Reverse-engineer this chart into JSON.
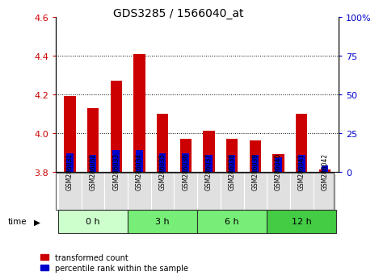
{
  "title": "GDS3285 / 1566040_at",
  "samples": [
    "GSM286031",
    "GSM286032",
    "GSM286033",
    "GSM286034",
    "GSM286035",
    "GSM286036",
    "GSM286037",
    "GSM286038",
    "GSM286039",
    "GSM286040",
    "GSM286041",
    "GSM286042"
  ],
  "transformed_count": [
    4.19,
    4.13,
    4.27,
    4.41,
    4.1,
    3.97,
    4.01,
    3.97,
    3.96,
    3.89,
    4.1,
    3.81
  ],
  "percentile_rank": [
    12,
    11,
    14,
    14,
    12,
    12,
    11,
    11,
    11,
    9,
    11,
    4
  ],
  "ylim_left": [
    3.8,
    4.6
  ],
  "ylim_right": [
    0,
    100
  ],
  "yticks_left": [
    3.8,
    4.0,
    4.2,
    4.4,
    4.6
  ],
  "yticks_right": [
    0,
    25,
    50,
    75,
    100
  ],
  "bar_bottom": 3.8,
  "bar_color_red": "#cc0000",
  "bar_color_blue": "#0000cc",
  "blue_bar_width": 0.3,
  "red_bar_width": 0.5,
  "grid_color": "black",
  "xlabel": "time",
  "legend_red": "transformed count",
  "legend_blue": "percentile rank within the sample",
  "tick_label_color_left": "#cc0000",
  "tick_label_color_right": "#0000cc",
  "title_fontsize": 10,
  "axis_fontsize": 8,
  "label_fontsize": 7.5,
  "groups": [
    {
      "label": "0 h",
      "indices": [
        0,
        1,
        2
      ],
      "color": "#ccffcc"
    },
    {
      "label": "3 h",
      "indices": [
        3,
        4,
        5
      ],
      "color": "#77ee77"
    },
    {
      "label": "6 h",
      "indices": [
        6,
        7,
        8
      ],
      "color": "#77ee77"
    },
    {
      "label": "12 h",
      "indices": [
        9,
        10,
        11
      ],
      "color": "#44cc44"
    }
  ]
}
